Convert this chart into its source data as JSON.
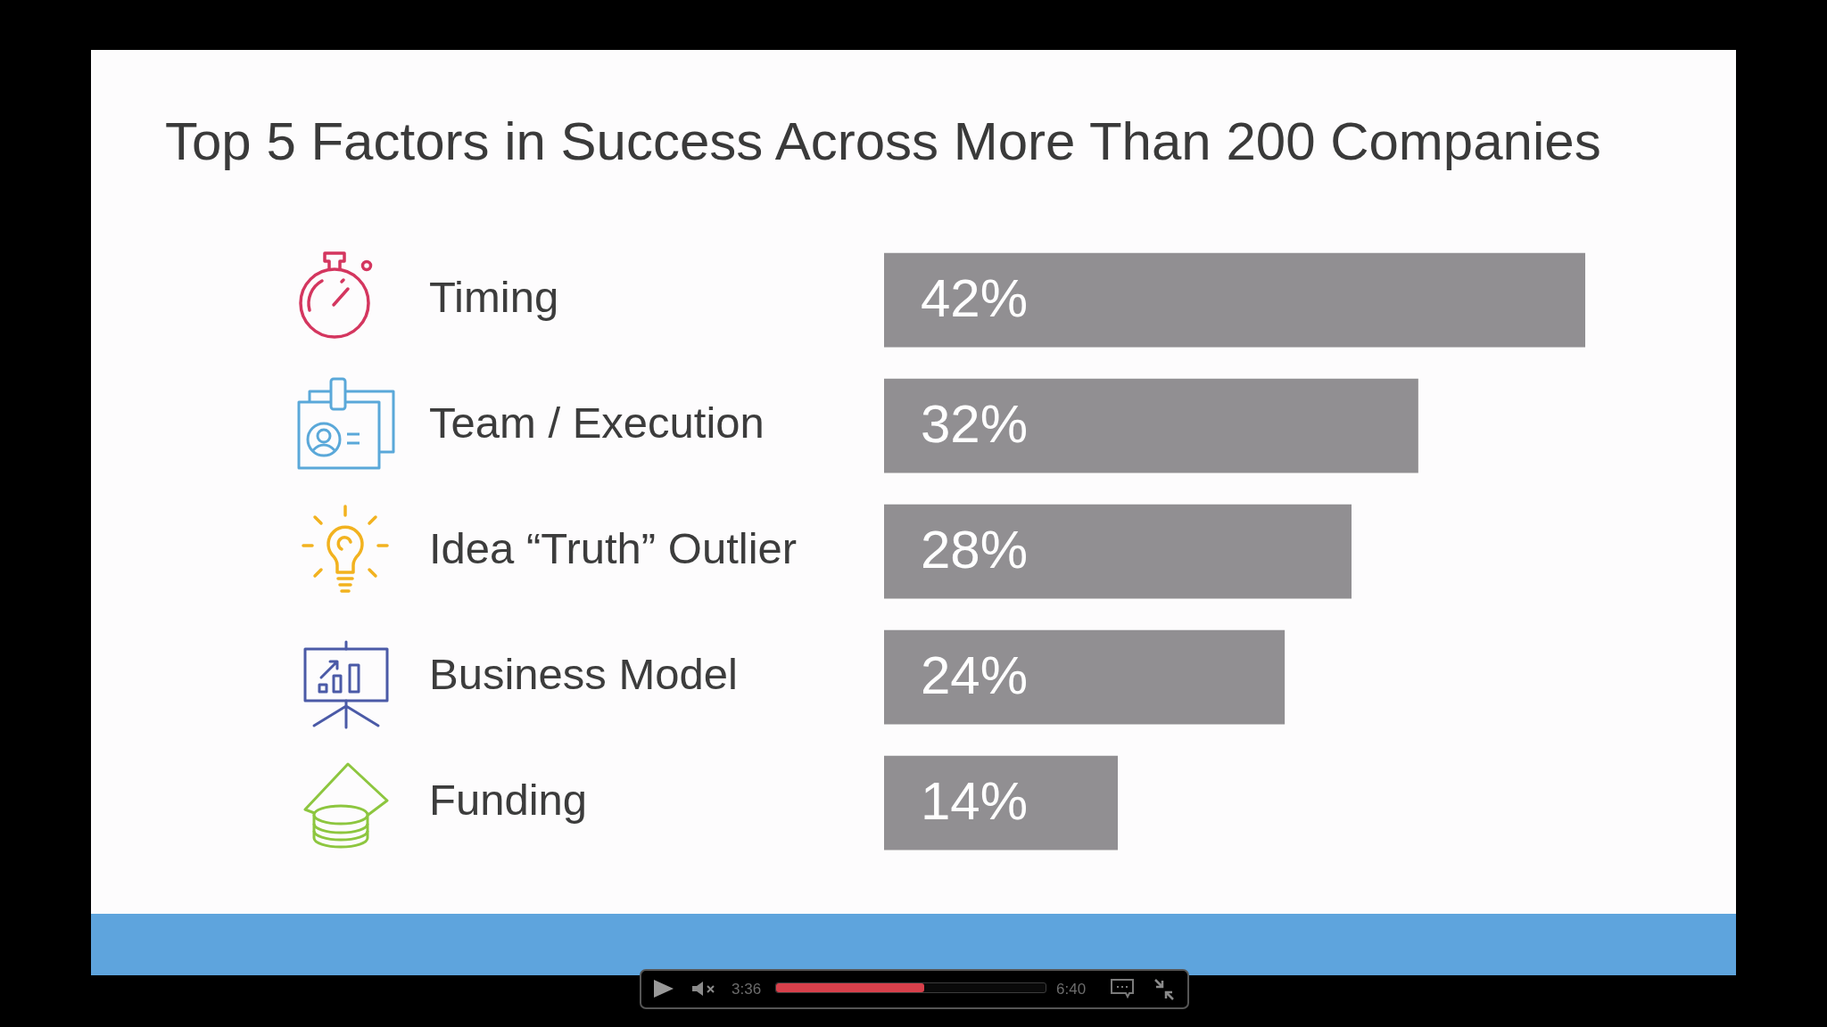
{
  "chart_data": {
    "type": "bar",
    "orientation": "horizontal",
    "title": "Top 5 Factors in Success Across More Than 200 Companies",
    "categories": [
      "Timing",
      "Team / Execution",
      "Idea “Truth” Outlier",
      "Business Model",
      "Funding"
    ],
    "values": [
      42,
      32,
      28,
      24,
      14
    ],
    "color": "#918f92",
    "value_labels": [
      "42%",
      "32%",
      "28%",
      "24%",
      "14%"
    ],
    "tick_labels": "y",
    "annotations": [
      "3:36",
      "6:40"
    ]
  }
}
